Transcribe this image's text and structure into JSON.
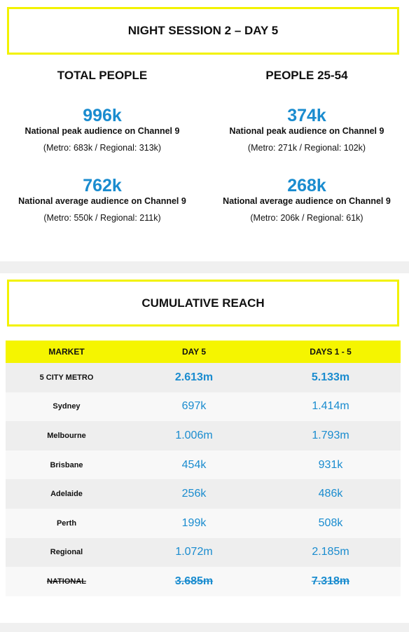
{
  "header": {
    "title": "NIGHT SESSION 2 – DAY 5"
  },
  "total_people": {
    "heading": "TOTAL PEOPLE",
    "peak": {
      "value": "996k",
      "label": "National peak audience on Channel 9",
      "detail": "(Metro: 683k / Regional: 313k)"
    },
    "average": {
      "value": "762k",
      "label": "National average audience on Channel 9",
      "detail": "(Metro: 550k / Regional: 211k)"
    }
  },
  "people_25_54": {
    "heading": "PEOPLE 25-54",
    "peak": {
      "value": "374k",
      "label": "National peak audience on Channel 9",
      "detail": "(Metro: 271k / Regional: 102k)"
    },
    "average": {
      "value": "268k",
      "label": "National average audience on Channel 9",
      "detail": "(Metro: 206k / Regional: 61k)"
    }
  },
  "reach": {
    "title": "CUMULATIVE REACH",
    "columns": [
      "MARKET",
      "DAY 5",
      "DAYS 1 - 5"
    ],
    "rows": [
      {
        "market": "5 CITY METRO",
        "day5": "2.613m",
        "days1_5": "5.133m"
      },
      {
        "market": "Sydney",
        "day5": "697k",
        "days1_5": "1.414m"
      },
      {
        "market": "Melbourne",
        "day5": "1.006m",
        "days1_5": "1.793m"
      },
      {
        "market": "Brisbane",
        "day5": "454k",
        "days1_5": "931k"
      },
      {
        "market": "Adelaide",
        "day5": "256k",
        "days1_5": "486k"
      },
      {
        "market": "Perth",
        "day5": "199k",
        "days1_5": "508k"
      },
      {
        "market": "Regional",
        "day5": "1.072m",
        "days1_5": "2.185m"
      },
      {
        "market": "NATIONAL",
        "day5": "3.685m",
        "days1_5": "7.318m"
      }
    ]
  },
  "colors": {
    "accent_yellow": "#f2f200",
    "value_blue": "#1a8ccf",
    "band_gray": "#f0f0f0"
  }
}
